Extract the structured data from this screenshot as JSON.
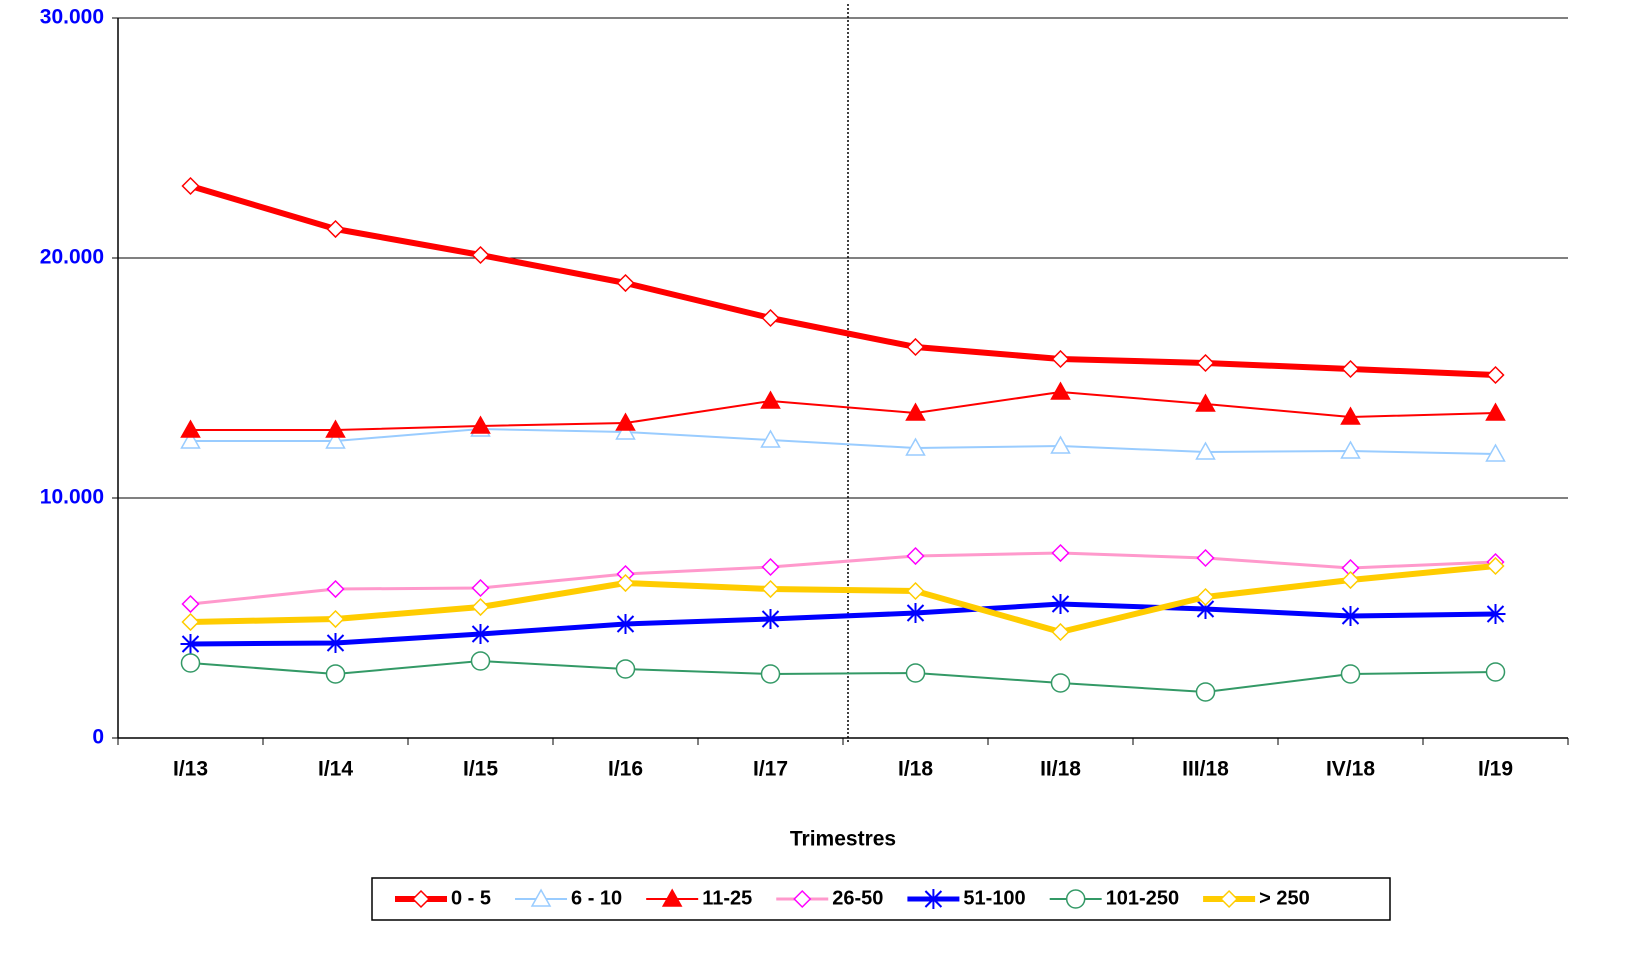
{
  "chart_data": {
    "type": "line",
    "x_label": "Trimestres",
    "categories": [
      "I/13",
      "I/14",
      "I/15",
      "I/16",
      "I/17",
      "I/18",
      "II/18",
      "III/18",
      "IV/18",
      "I/19"
    ],
    "ylim": [
      0,
      30000
    ],
    "yticks": [
      {
        "value": 0,
        "label": "0"
      },
      {
        "value": 10000,
        "label": "10.000"
      },
      {
        "value": 20000,
        "label": "20.000"
      },
      {
        "value": 30000,
        "label": "30.000"
      }
    ],
    "grid": true,
    "legend": "bottom",
    "series": [
      {
        "name": "0 - 5",
        "color": "#ff0000",
        "line_width": 6,
        "marker": "diamond",
        "marker_color": "#ff0000",
        "marker_fill": "#ffffff",
        "values": [
          23000,
          21208,
          20125,
          18958,
          17500,
          16292,
          15792,
          15625,
          15375,
          15125
        ]
      },
      {
        "name": "6 - 10",
        "color": "#99ccff",
        "line_width": 2,
        "marker": "triangle",
        "marker_color": "#99ccff",
        "marker_fill": "#ffffff",
        "values": [
          12375,
          12375,
          12875,
          12750,
          12417,
          12083,
          12167,
          11917,
          11958,
          11833
        ]
      },
      {
        "name": "11-25",
        "color": "#ff0000",
        "line_width": 2,
        "marker": "triangle",
        "marker_color": "#ff0000",
        "marker_fill": "#ff0000",
        "values": [
          12833,
          12833,
          13000,
          13125,
          14042,
          13542,
          14417,
          13917,
          13375,
          13542
        ]
      },
      {
        "name": "26-50",
        "color": "#ff99cc",
        "line_width": 3,
        "marker": "diamond",
        "marker_color": "#ff00ff",
        "marker_fill": "#ffffff",
        "values": [
          5583,
          6208,
          6250,
          6833,
          7125,
          7583,
          7708,
          7500,
          7083,
          7333
        ]
      },
      {
        "name": "51-100",
        "color": "#0000ff",
        "line_width": 5,
        "marker": "star",
        "marker_color": "#0000ff",
        "marker_fill": "none",
        "values": [
          3917,
          3958,
          4333,
          4750,
          4958,
          5208,
          5583,
          5375,
          5083,
          5167
        ]
      },
      {
        "name": "101-250",
        "color": "#339966",
        "line_width": 2,
        "marker": "circle",
        "marker_color": "#339966",
        "marker_fill": "#ffffff",
        "values": [
          3125,
          2667,
          3208,
          2875,
          2667,
          2708,
          2292,
          1917,
          2667,
          2750
        ]
      },
      {
        "name": "> 250",
        "color": "#ffcc00",
        "line_width": 6,
        "marker": "diamond",
        "marker_color": "#ffcc00",
        "marker_fill": "#ffffff",
        "values": [
          4833,
          4958,
          5458,
          6458,
          6208,
          6125,
          4417,
          5875,
          6583,
          7167
        ]
      }
    ]
  }
}
